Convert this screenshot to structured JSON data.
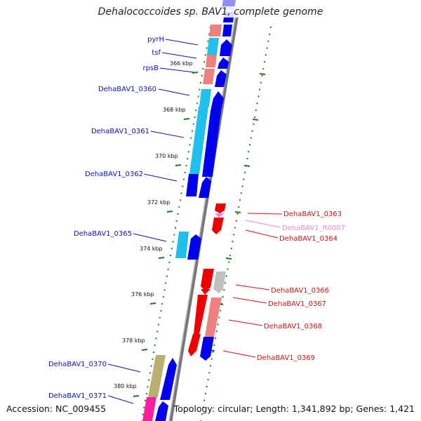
{
  "title": "Dehalococcoides sp. BAV1, complete genome",
  "accession": "Accession: NC_009455",
  "topology": "Topology: circular; Length: 1,341,892 bp; Genes: 1,421",
  "colors": {
    "backbone": "#888888",
    "ticks": "#1e7a1e",
    "forward_label": "#1010b8",
    "reverse_label": "#d01010",
    "rna_label": "#ee88cc",
    "cds": "#0000ee",
    "cds_light": "#1ec0ee",
    "gene_pink": "#ee8080",
    "gene_red": "#ee0000",
    "gene_grey": "#c0c0c0",
    "gene_olive": "#b8b070",
    "gene_magenta": "#ff1ea0"
  },
  "kbp_labels": [
    "366 kbp",
    "368 kbp",
    "370 kbp",
    "372 kbp",
    "374 kbp",
    "376 kbp",
    "378 kbp",
    "380 kbp"
  ],
  "labels_left": [
    "pyrH",
    "tsf",
    "rpsB",
    "DehaBAV1_0360",
    "DehaBAV1_0361",
    "DehaBAV1_0362",
    "DehaBAV1_0365",
    "DehaBAV1_0370",
    "DehaBAV1_0371"
  ],
  "labels_right": [
    "DehaBAV1_0363",
    "DehaBAV1_R0007",
    "DehaBAV1_0364",
    "DehaBAV1_0366",
    "DehaBAV1_0367",
    "DehaBAV1_0368",
    "DehaBAV1_0369"
  ]
}
